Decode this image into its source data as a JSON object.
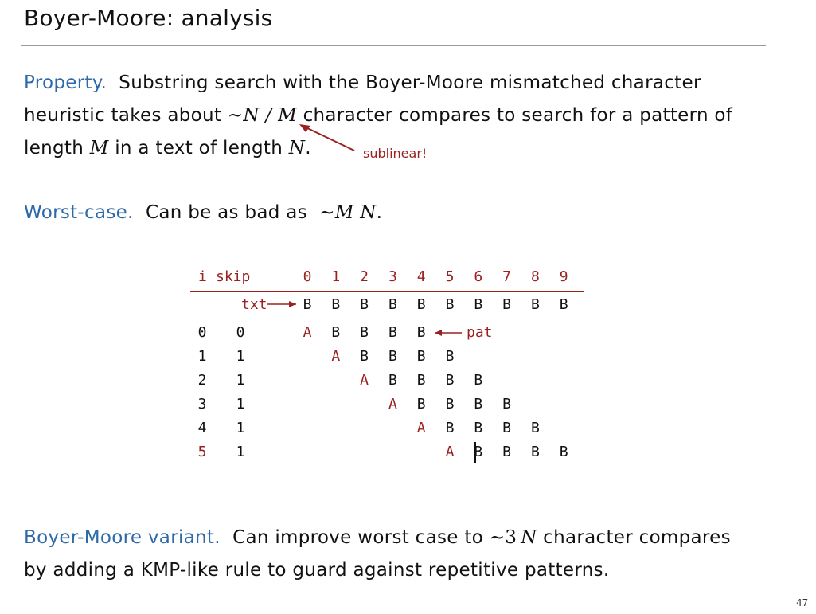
{
  "title": "Boyer-Moore:  analysis",
  "property": {
    "label": "Property.",
    "l1_text": "Substring search with the Boyer-Moore mismatched character",
    "l2_a": "heuristic takes about",
    "l2_tilde": "~",
    "l2_math": "N / M",
    "l2_b": "character compares to search for a pattern of",
    "l3_a": "length",
    "l3_M": "M",
    "l3_b": "in a text of length",
    "l3_N": "N",
    "l3_end": ".",
    "annotation": "sublinear!"
  },
  "worst_case": {
    "label": "Worst-case.",
    "text": "Can be as bad as",
    "tilde": "~",
    "math": "M N",
    "end": "."
  },
  "trace": {
    "header_i": "i",
    "header_skip": "skip",
    "columns": [
      "0",
      "1",
      "2",
      "3",
      "4",
      "5",
      "6",
      "7",
      "8",
      "9"
    ],
    "txt_label": "txt",
    "txt": [
      "B",
      "B",
      "B",
      "B",
      "B",
      "B",
      "B",
      "B",
      "B",
      "B"
    ],
    "pat_label": "pat",
    "rows": [
      {
        "i": "0",
        "skip": "0",
        "cells": [
          "A",
          "B",
          "B",
          "B",
          "B"
        ]
      },
      {
        "i": "1",
        "skip": "1",
        "cells": [
          "A",
          "B",
          "B",
          "B",
          "B"
        ]
      },
      {
        "i": "2",
        "skip": "1",
        "cells": [
          "A",
          "B",
          "B",
          "B",
          "B"
        ]
      },
      {
        "i": "3",
        "skip": "1",
        "cells": [
          "A",
          "B",
          "B",
          "B",
          "B"
        ]
      },
      {
        "i": "4",
        "skip": "1",
        "cells": [
          "A",
          "B",
          "B",
          "B",
          "B"
        ]
      },
      {
        "i": "5",
        "skip": "1",
        "cells": [
          "A",
          "B",
          "B",
          "B",
          "B"
        ]
      }
    ]
  },
  "variant": {
    "label": "Boyer-Moore variant.",
    "l1_text": "Can improve worst case to",
    "tilde": "~",
    "math_num": "3",
    "math_N": "N",
    "l1_end": "character compares",
    "l2_text": "by adding a KMP-like rule to guard against repetitive patterns."
  },
  "page_number": "47",
  "colors": {
    "keyword": "#2f6aa8",
    "accent_red": "#9b2121"
  }
}
